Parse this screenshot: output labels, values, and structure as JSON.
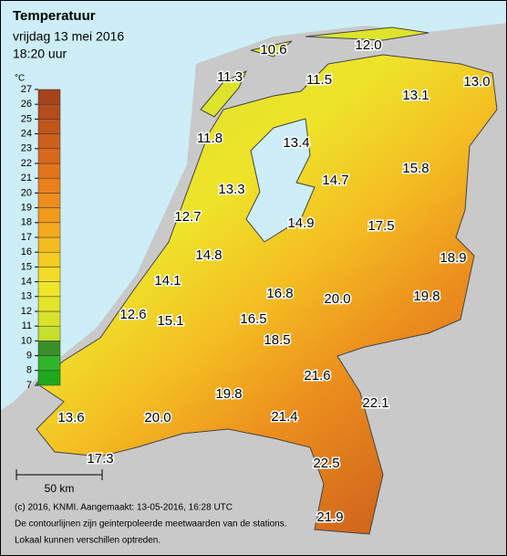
{
  "header": {
    "title": "Temperatuur",
    "date": "vrijdag 13 mei 2016",
    "time": "18:20 uur"
  },
  "legend": {
    "unit": "°C",
    "ticks": [
      7,
      8,
      9,
      10,
      11,
      12,
      13,
      14,
      15,
      16,
      17,
      18,
      19,
      20,
      21,
      22,
      23,
      24,
      25,
      26,
      27
    ],
    "colors": [
      "#1fa81f",
      "#2fb52a",
      "#3a8f2a",
      "#c6e02c",
      "#d6e32a",
      "#e3e52a",
      "#eee62a",
      "#f4dc26",
      "#f6cc22",
      "#f5bb20",
      "#f3aa1f",
      "#f19a1e",
      "#ee8d1d",
      "#ea801c",
      "#e2741c",
      "#d8691c",
      "#cc5f1c",
      "#c0561c",
      "#b34d1c",
      "#a6431a"
    ]
  },
  "stations": [
    "10.6",
    "12.0",
    "11.3",
    "11.5",
    "13.1",
    "13.0",
    "11.8",
    "13.4",
    "14.7",
    "15.8",
    "13.3",
    "12.7",
    "14.9",
    "17.5",
    "14.8",
    "18.9",
    "14.1",
    "16.8",
    "20.0",
    "19.8",
    "12.6",
    "15.1",
    "16.5",
    "18.5",
    "21.6",
    "22.1",
    "19.8",
    "21.4",
    "13.6",
    "20.0",
    "17.3",
    "22.5",
    "21.9"
  ],
  "scale": "50 km",
  "footer": [
    "(c) 2016, KNMI. Aangemaakt: 13-05-2016, 16:28 UTC",
    "De contourlijnen zijn geinterpoleerde meetwaarden van de stations.",
    "Lokaal kunnen verschillen optreden."
  ]
}
